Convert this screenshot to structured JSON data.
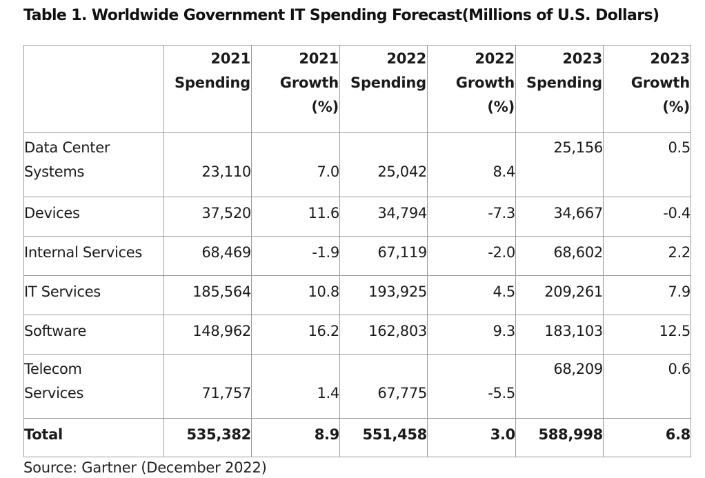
{
  "title": "Table 1. Worldwide Government IT Spending Forecast(Millions of U.S. Dollars)",
  "header": {
    "category": "",
    "cols": [
      [
        "2021",
        "Spending"
      ],
      [
        "2021",
        "Growth",
        "(%)"
      ],
      [
        "2022",
        "Spending"
      ],
      [
        "2022",
        "Growth",
        "(%)"
      ],
      [
        "2023",
        "Spending"
      ],
      [
        "2023",
        "Growth",
        "(%)"
      ]
    ]
  },
  "rows": [
    {
      "category": [
        "Data Center",
        "Systems"
      ],
      "values": [
        "23,110",
        "7.0",
        "25,042",
        "8.4",
        "25,156",
        "0.5"
      ]
    },
    {
      "category": [
        "Devices"
      ],
      "values": [
        "37,520",
        "11.6",
        "34,794",
        "-7.3",
        "34,667",
        "-0.4"
      ]
    },
    {
      "category": [
        "Internal Services"
      ],
      "values": [
        "68,469",
        "-1.9",
        "67,119",
        "-2.0",
        "68,602",
        "2.2"
      ]
    },
    {
      "category": [
        "IT Services"
      ],
      "values": [
        "185,564",
        "10.8",
        "193,925",
        "4.5",
        "209,261",
        "7.9"
      ]
    },
    {
      "category": [
        "Software"
      ],
      "values": [
        "148,962",
        "16.2",
        "162,803",
        "9.3",
        "183,103",
        "12.5"
      ]
    },
    {
      "category": [
        "Telecom",
        "Services"
      ],
      "values": [
        "71,757",
        "1.4",
        "67,775",
        "-5.5",
        "68,209",
        "0.6"
      ]
    }
  ],
  "total": {
    "category": "Total",
    "values": [
      "535,382",
      "8.9",
      "551,458",
      "3.0",
      "588,998",
      "6.8"
    ]
  },
  "source": "Source: Gartner (December 2022)"
}
